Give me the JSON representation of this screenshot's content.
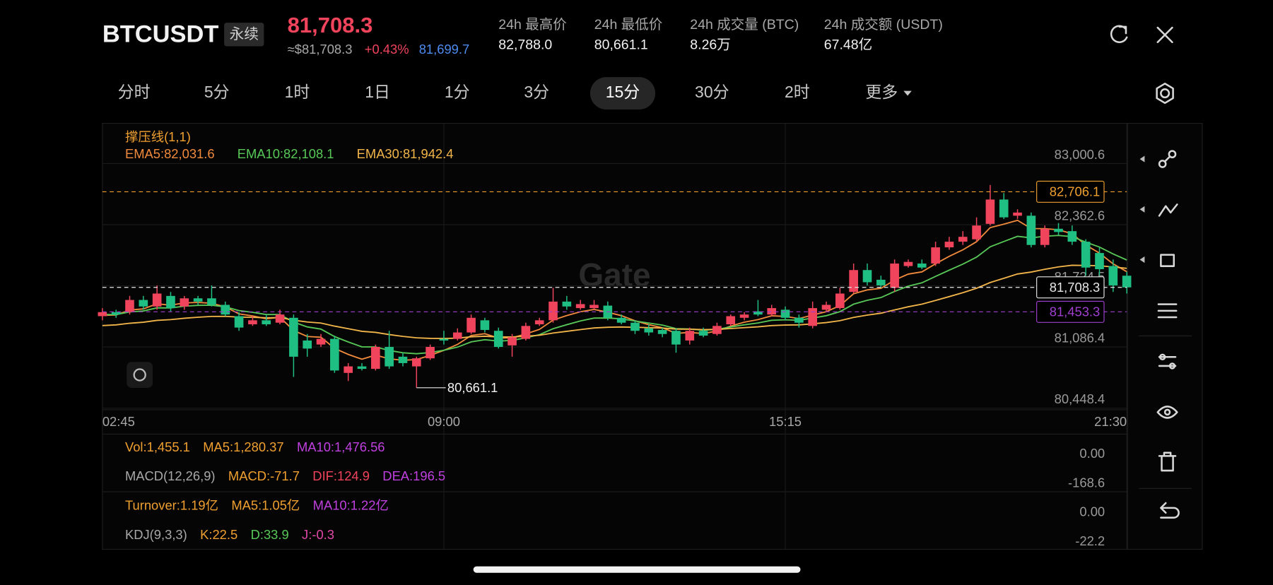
{
  "header": {
    "symbol": "BTCUSDT",
    "contract": "永续",
    "last_price": "81,708.3",
    "usd_price": "≈$81,708.3",
    "change": "+0.43%",
    "mark_price": "81,699.7",
    "stats": [
      {
        "label": "24h 最高价",
        "value": "82,788.0"
      },
      {
        "label": "24h 最低价",
        "value": "80,661.1"
      },
      {
        "label": "24h 成交量 (BTC)",
        "value": "8.26万"
      },
      {
        "label": "24h 成交额 (USDT)",
        "value": "67.48亿"
      }
    ]
  },
  "timeframes": {
    "items": [
      "分时",
      "5分",
      "1时",
      "1日",
      "1分",
      "3分",
      "15分",
      "30分",
      "2时",
      "更多"
    ],
    "active": 6
  },
  "chart_data": {
    "type": "candlestick",
    "indicator": "撑压线(1,1)",
    "watermark": "Gate",
    "up_color": "#f0435c",
    "down_color": "#1fbf83",
    "categories": [
      "02:45",
      null,
      null,
      null,
      null,
      null,
      null,
      null,
      null,
      null,
      null,
      null,
      null,
      null,
      null,
      null,
      null,
      null,
      null,
      null,
      null,
      null,
      null,
      null,
      null,
      "09:00",
      null,
      null,
      null,
      null,
      null,
      null,
      null,
      null,
      null,
      null,
      null,
      null,
      null,
      null,
      null,
      null,
      null,
      null,
      null,
      null,
      null,
      null,
      null,
      null,
      "15:15",
      null,
      null,
      null,
      null,
      null,
      null,
      null,
      null,
      null,
      null,
      null,
      null,
      null,
      null,
      null,
      null,
      null,
      null,
      null,
      null,
      null,
      null,
      null,
      null,
      "21:30"
    ],
    "open": [
      81408,
      81450,
      81450,
      81577,
      81509,
      81619,
      81509,
      81594,
      81594,
      81526,
      81408,
      81323,
      81365,
      81340,
      81391,
      81154,
      81112,
      81171,
      80816,
      80884,
      80858,
      81087,
      80985,
      80884,
      80968,
      81171,
      81171,
      81238,
      81365,
      81255,
      81103,
      81171,
      81323,
      81365,
      81560,
      81492,
      81492,
      81518,
      81391,
      81340,
      81281,
      81264,
      81255,
      81154,
      81255,
      81222,
      81323,
      81391,
      81458,
      81425,
      81475,
      81391,
      81306,
      81475,
      81492,
      81661,
      81889,
      81788,
      81704,
      81931,
      81957,
      81957,
      82126,
      82185,
      82210,
      82371,
      82625,
      82456,
      82456,
      82151,
      82320,
      82295,
      82185,
      82067,
      81931,
      81830
    ],
    "high": [
      81492,
      81475,
      81619,
      81619,
      81729,
      81661,
      81619,
      81619,
      81729,
      81560,
      81450,
      81408,
      81425,
      81475,
      81425,
      81222,
      81222,
      81205,
      80918,
      80918,
      81112,
      81255,
      81027,
      80985,
      81112,
      81255,
      81281,
      81425,
      81391,
      81289,
      81222,
      81340,
      81391,
      81704,
      81619,
      81577,
      81577,
      81560,
      81425,
      81365,
      81323,
      81289,
      81281,
      81289,
      81289,
      81340,
      81425,
      81450,
      81577,
      81526,
      81509,
      81425,
      81560,
      81560,
      81704,
      81957,
      81957,
      81830,
      81999,
      81999,
      81999,
      82185,
      82236,
      82295,
      82439,
      82777,
      82692,
      82523,
      82489,
      82354,
      82380,
      82354,
      82210,
      82126,
      81999,
      81872
    ],
    "low": [
      81365,
      81391,
      81425,
      81475,
      81475,
      81458,
      81475,
      81526,
      81509,
      81408,
      81255,
      81306,
      81306,
      81323,
      80774,
      80985,
      81087,
      80816,
      80731,
      80841,
      80841,
      80858,
      80884,
      80661.1,
      80951,
      81112,
      81154,
      81222,
      81238,
      81070,
      80985,
      81154,
      81306,
      81340,
      81475,
      81475,
      81475,
      81365,
      81323,
      81222,
      81205,
      81188,
      81027,
      81112,
      81188,
      81205,
      81306,
      81365,
      81408,
      81408,
      81365,
      81289,
      81281,
      81450,
      81475,
      81644,
      81729,
      81704,
      81661,
      81915,
      81898,
      81931,
      82101,
      82151,
      82185,
      82354,
      82422,
      82422,
      82126,
      82126,
      82253,
      82151,
      81830,
      81830,
      81661,
      81644
    ],
    "close": [
      81450,
      81425,
      81577,
      81509,
      81644,
      81492,
      81594,
      81560,
      81526,
      81425,
      81289,
      81365,
      81323,
      81425,
      80985,
      81070,
      81171,
      80841,
      80884,
      80858,
      81087,
      80884,
      80918,
      80968,
      81087,
      81154,
      81238,
      81391,
      81264,
      81087,
      81188,
      81306,
      81365,
      81560,
      81509,
      81534,
      81526,
      81391,
      81340,
      81255,
      81238,
      81222,
      81112,
      81255,
      81205,
      81306,
      81408,
      81425,
      81425,
      81492,
      81391,
      81340,
      81492,
      81526,
      81644,
      81889,
      81762,
      81729,
      81957,
      81974,
      81915,
      82126,
      82185,
      82236,
      82354,
      82625,
      82439,
      82489,
      82151,
      82320,
      82286,
      82185,
      81915,
      81898,
      81729,
      81708.3
    ],
    "series": [
      {
        "name": "EMA5:82,031.6",
        "color": "#f08a3c",
        "values": [
          81417,
          81420,
          81472,
          81484,
          81537,
          81522,
          81546,
          81551,
          81543,
          81504,
          81432,
          81410,
          81381,
          81396,
          81259,
          81196,
          81188,
          81072,
          81009,
          80959,
          81002,
          80963,
          80948,
          80955,
          80999,
          81051,
          81113,
          81206,
          81225,
          81179,
          81182,
          81223,
          81270,
          81367,
          81414,
          81454,
          81478,
          81449,
          81413,
          81360,
          81319,
          81287,
          81229,
          81238,
          81227,
          81253,
          81305,
          81345,
          81372,
          81412,
          81405,
          81383,
          81419,
          81455,
          81518,
          81642,
          81682,
          81698,
          81784,
          81847,
          81870,
          81955,
          82032,
          82100,
          82185,
          82332,
          82368,
          82408,
          82322,
          82321,
          82309,
          82268,
          82150,
          82066,
          81954,
          81872
        ]
      },
      {
        "name": "EMA10:82,108.1",
        "color": "#57c857",
        "values": [
          81425,
          81425,
          81452,
          81462,
          81495,
          81494,
          81512,
          81521,
          81522,
          81505,
          81466,
          81448,
          81425,
          81425,
          81346,
          81296,
          81273,
          81195,
          81139,
          81088,
          81087,
          81050,
          81026,
          81016,
          81029,
          81052,
          81085,
          81140,
          81162,
          81148,
          81155,
          81182,
          81215,
          81277,
          81319,
          81358,
          81388,
          81389,
          81380,
          81357,
          81336,
          81315,
          81278,
          81274,
          81262,
          81270,
          81295,
          81318,
          81337,
          81365,
          81370,
          81365,
          81388,
          81413,
          81455,
          81533,
          81574,
          81602,
          81666,
          81721,
          81756,
          81823,
          81888,
          81951,
          82024,
          82132,
          82187,
          82241,
          82225,
          82242,
          82250,
          82238,
          82180,
          82129,
          82057,
          81994
        ]
      },
      {
        "name": "EMA30:81,942.4",
        "color": "#f2b54a",
        "values": [
          81310,
          81317,
          81334,
          81345,
          81364,
          81372,
          81386,
          81397,
          81405,
          81406,
          81398,
          81396,
          81391,
          81393,
          81366,
          81347,
          81336,
          81304,
          81277,
          81250,
          81239,
          81216,
          81197,
          81182,
          81176,
          81175,
          81179,
          81193,
          81198,
          81191,
          81191,
          81198,
          81209,
          81232,
          81250,
          81268,
          81285,
          81292,
          81295,
          81292,
          81288,
          81284,
          81273,
          81272,
          81268,
          81270,
          81279,
          81288,
          81297,
          81310,
          81315,
          81317,
          81328,
          81341,
          81361,
          81395,
          81419,
          81439,
          81473,
          81506,
          81533,
          81572,
          81612,
          81653,
          81699,
          81759,
          81803,
          81848,
          81868,
          81897,
          81922,
          81939,
          81937,
          81934,
          81921,
          81907
        ]
      }
    ],
    "ylim": [
      80440,
      83420
    ],
    "yticks": [
      {
        "value": 83000.6,
        "label": "83,000.6"
      },
      {
        "value": 82362.6,
        "label": "82,362.6"
      },
      {
        "value": 81724.5,
        "label": "81,724.5"
      },
      {
        "value": 81086.4,
        "label": "81,086.4"
      },
      {
        "value": 80448.4,
        "label": "80,448.4"
      }
    ],
    "grid": true,
    "price_lines": [
      {
        "value": 82706.1,
        "label": "82,706.1",
        "color": "#f0a030"
      },
      {
        "value": 81708.3,
        "label": "81,708.3",
        "color": "#e8e8e8"
      },
      {
        "value": 81453.3,
        "label": "81,453.3",
        "color": "#a03fd0"
      }
    ],
    "annotations": [
      {
        "value": 80661.1,
        "label": "80,661.1"
      }
    ]
  },
  "indicators": [
    {
      "labels": [
        {
          "text": "Vol:1,455.1",
          "color": "#f0a030"
        },
        {
          "text": "MA5:1,280.37",
          "color": "#f0a030"
        },
        {
          "text": "MA10:1,476.56",
          "color": "#c040e0"
        }
      ],
      "axis_label": "0.00"
    },
    {
      "labels": [
        {
          "text": "MACD(12,26,9)",
          "color": "#a8a8a8"
        },
        {
          "text": "MACD:-71.7",
          "color": "#f0a030"
        },
        {
          "text": "DIF:124.9",
          "color": "#f0435c"
        },
        {
          "text": "DEA:196.5",
          "color": "#c040e0"
        }
      ],
      "axis_label": "-168.6"
    },
    {
      "labels": [
        {
          "text": "Turnover:1.19亿",
          "color": "#f0a030"
        },
        {
          "text": "MA5:1.05亿",
          "color": "#f0a030"
        },
        {
          "text": "MA10:1.22亿",
          "color": "#c040e0"
        }
      ],
      "axis_label": "0.00"
    },
    {
      "labels": [
        {
          "text": "KDJ(9,3,3)",
          "color": "#a8a8a8"
        },
        {
          "text": "K:22.5",
          "color": "#f0a030"
        },
        {
          "text": "D:33.9",
          "color": "#57c857"
        },
        {
          "text": "J:-0.3",
          "color": "#e048a8"
        }
      ],
      "axis_label": "-22.2"
    }
  ]
}
